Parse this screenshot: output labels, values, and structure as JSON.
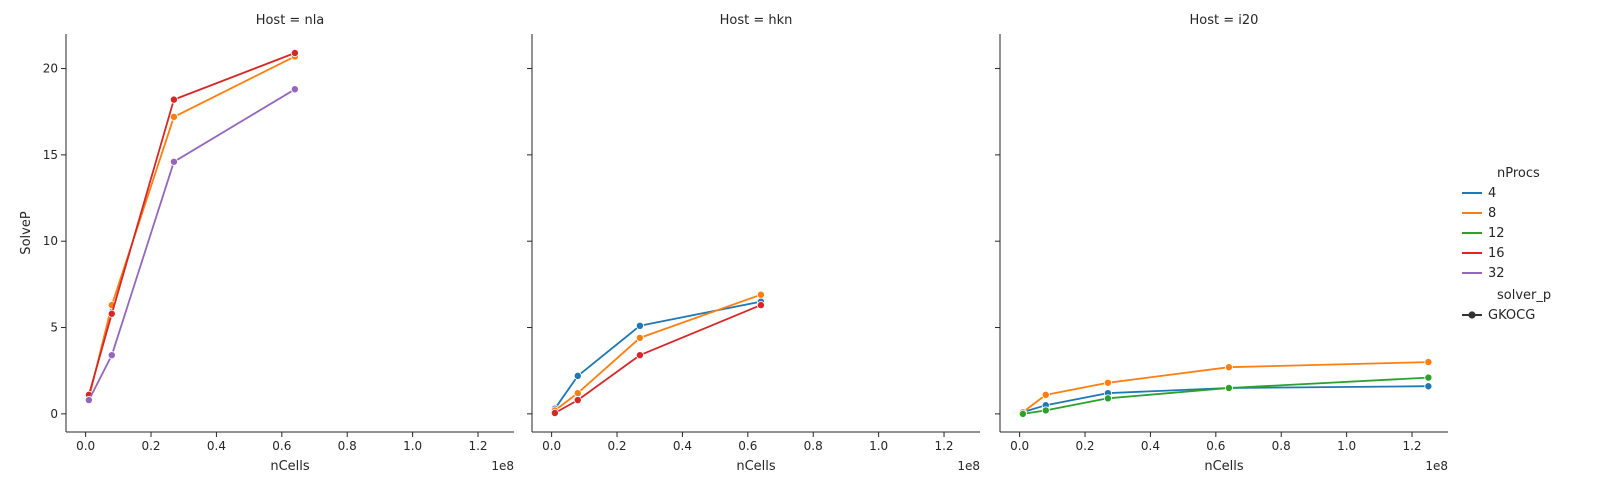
{
  "chart_data": {
    "type": "line",
    "ylabel": "SolveP",
    "xlabel": "nCells",
    "x_offset_label": "1e8",
    "xlim": [
      -0.06,
      1.31
    ],
    "ylim": [
      -1.05,
      22.0
    ],
    "x_ticks": [
      0.0,
      0.2,
      0.4,
      0.6,
      0.8,
      1.0,
      1.2
    ],
    "x_tick_labels": [
      "0.0",
      "0.2",
      "0.4",
      "0.6",
      "0.8",
      "1.0",
      "1.2"
    ],
    "y_ticks": [
      0,
      5,
      10,
      15,
      20
    ],
    "y_tick_labels": [
      "0",
      "5",
      "10",
      "15",
      "20"
    ],
    "grid": false,
    "legend": {
      "placement": "right",
      "hue_title": "nProcs",
      "hue_entries": [
        {
          "label": "4",
          "color": "#1f77b4"
        },
        {
          "label": "8",
          "color": "#ff7f0e"
        },
        {
          "label": "12",
          "color": "#2ca02c"
        },
        {
          "label": "16",
          "color": "#d62728"
        },
        {
          "label": "32",
          "color": "#9467bd"
        }
      ],
      "style_title": "solver_p",
      "style_entries": [
        {
          "label": "GKOCG"
        }
      ]
    },
    "panels": [
      {
        "title": "Host = nla",
        "series": [
          {
            "name": "8",
            "color": "#ff7f0e",
            "x": [
              0.01,
              0.08,
              0.27,
              0.64
            ],
            "y": [
              0.9,
              6.3,
              17.2,
              20.7
            ]
          },
          {
            "name": "16",
            "color": "#d62728",
            "x": [
              0.01,
              0.08,
              0.27,
              0.64
            ],
            "y": [
              1.1,
              5.8,
              18.2,
              20.9
            ]
          },
          {
            "name": "32",
            "color": "#9467bd",
            "x": [
              0.01,
              0.08,
              0.27,
              0.64
            ],
            "y": [
              0.8,
              3.4,
              14.6,
              18.8
            ]
          }
        ]
      },
      {
        "title": "Host = hkn",
        "series": [
          {
            "name": "4",
            "color": "#1f77b4",
            "x": [
              0.01,
              0.08,
              0.27,
              0.64
            ],
            "y": [
              0.3,
              2.2,
              5.1,
              6.5
            ]
          },
          {
            "name": "8",
            "color": "#ff7f0e",
            "x": [
              0.01,
              0.08,
              0.27,
              0.64
            ],
            "y": [
              0.2,
              1.2,
              4.4,
              6.9
            ]
          },
          {
            "name": "16",
            "color": "#d62728",
            "x": [
              0.01,
              0.08,
              0.27,
              0.64
            ],
            "y": [
              0.05,
              0.8,
              3.4,
              6.3
            ]
          }
        ]
      },
      {
        "title": "Host = i20",
        "series": [
          {
            "name": "4",
            "color": "#1f77b4",
            "x": [
              0.01,
              0.08,
              0.27,
              0.64,
              1.25
            ],
            "y": [
              0.1,
              0.5,
              1.2,
              1.5,
              1.6
            ]
          },
          {
            "name": "8",
            "color": "#ff7f0e",
            "x": [
              0.01,
              0.08,
              0.27,
              0.64,
              1.25
            ],
            "y": [
              0.1,
              1.1,
              1.8,
              2.7,
              3.0
            ]
          },
          {
            "name": "12",
            "color": "#2ca02c",
            "x": [
              0.01,
              0.08,
              0.27,
              0.64,
              1.25
            ],
            "y": [
              0.0,
              0.2,
              0.9,
              1.5,
              2.1
            ]
          }
        ]
      }
    ]
  }
}
